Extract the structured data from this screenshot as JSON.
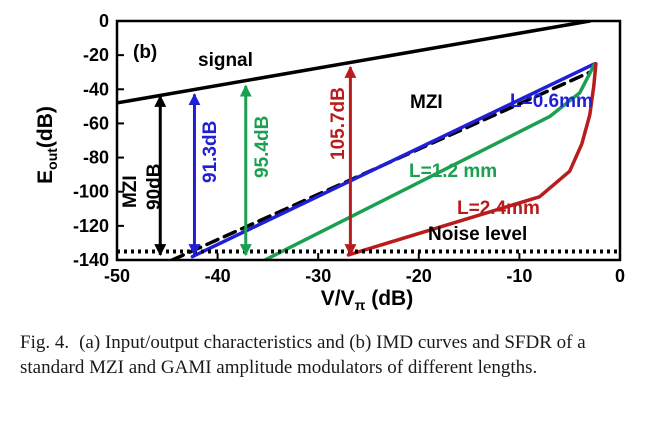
{
  "chart_data": {
    "type": "line",
    "panel_label": "(b)",
    "xlabel_main": "V/V",
    "xlabel_sub": "π",
    "xlabel_unit": " (dB)",
    "ylabel_main": "E",
    "ylabel_sub": "out",
    "ylabel_unit": "(dB)",
    "xlim": [
      -50,
      0
    ],
    "ylim": [
      -140,
      0
    ],
    "xticks": [
      -50,
      -40,
      -30,
      -20,
      -10,
      0
    ],
    "yticks": [
      0,
      -20,
      -40,
      -60,
      -80,
      -100,
      -120,
      -140
    ],
    "grid": false,
    "series": [
      {
        "name": "signal",
        "color": "#000000",
        "style": "solid",
        "x": [
          -50,
          -3
        ],
        "y": [
          -48,
          0
        ]
      },
      {
        "name": "MZI",
        "color": "#000000",
        "style": "dashed",
        "x": [
          -44.5,
          -3
        ],
        "y": [
          -140,
          -30
        ]
      },
      {
        "name": "L=0.6mm",
        "color": "#1f1fd6",
        "style": "solid",
        "x": [
          -42.5,
          -2.5
        ],
        "y": [
          -138,
          -25
        ]
      },
      {
        "name": "L=1.2 mm",
        "color": "#1aa050",
        "style": "solid",
        "x": [
          -40,
          -7,
          -4,
          -2.5
        ],
        "y": [
          -154,
          -56,
          -42,
          -25
        ]
      },
      {
        "name": "L=2.4mm",
        "color": "#b81c1c",
        "style": "solid",
        "x": [
          -27,
          -8,
          -5,
          -3.8,
          -3,
          -2.6,
          -2.4
        ],
        "y": [
          -137,
          -103,
          -88,
          -72,
          -55,
          -38,
          -25
        ]
      },
      {
        "name": "Noise level",
        "color": "#000000",
        "style": "dotted",
        "x": [
          -50,
          0
        ],
        "y": [
          -135,
          -135
        ]
      }
    ],
    "annotations": [
      {
        "text": "MZI",
        "text2": "90dB",
        "color": "#000000",
        "x": -45.7,
        "y_top": -44,
        "y_bottom": -137
      },
      {
        "text": "91.3dB",
        "color": "#1f1fd6",
        "x": -42.3,
        "y_top": -43,
        "y_bottom": -137
      },
      {
        "text": "95.4dB",
        "color": "#1aa050",
        "x": -37.2,
        "y_top": -38,
        "y_bottom": -137
      },
      {
        "text": "105.7dB",
        "color": "#b81c1c",
        "x": -26.8,
        "y_top": -27,
        "y_bottom": -137
      }
    ]
  },
  "caption": {
    "label": "Fig. 4.",
    "text": "(a) Input/output characteristics and (b) IMD curves and SFDR of a standard MZI and GAMI amplitude modulators of different lengths."
  }
}
